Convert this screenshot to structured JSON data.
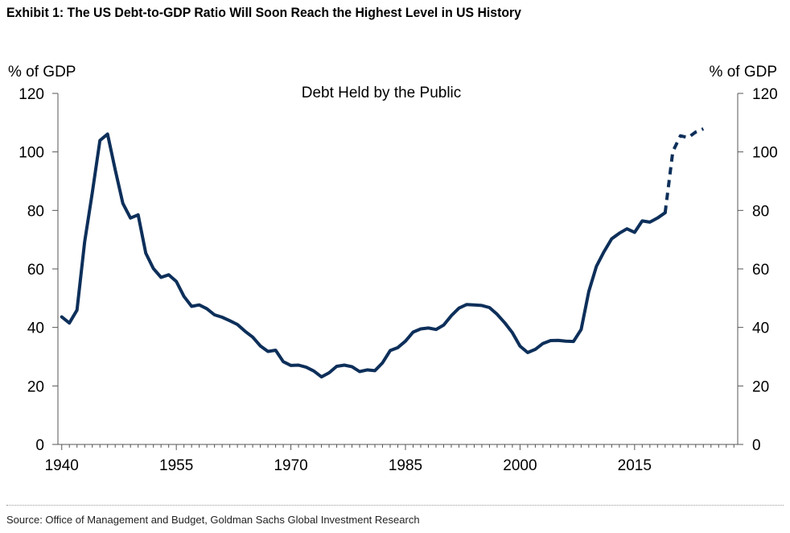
{
  "title": "Exhibit 1: The US Debt-to-GDP Ratio Will Soon Reach the Highest Level in US History",
  "source": "Source: Office of Management and Budget, Goldman Sachs Global Investment Research",
  "chart_data": {
    "type": "line",
    "title": "Debt Held by the Public",
    "ylabel_left": "% of GDP",
    "ylabel_right": "% of GDP",
    "xlim": [
      1939.5,
      2028.5
    ],
    "ylim": [
      0,
      120
    ],
    "x_ticks": [
      1940,
      1955,
      1970,
      1985,
      2000,
      2015
    ],
    "y_ticks": [
      0,
      20,
      40,
      60,
      80,
      100,
      120
    ],
    "grid": false,
    "line_color": "#0d2f5a",
    "series": [
      {
        "style": "solid",
        "x": [
          1940,
          1941,
          1942,
          1943,
          1944,
          1945,
          1946,
          1947,
          1948,
          1949,
          1950,
          1951,
          1952,
          1953,
          1954,
          1955,
          1956,
          1957,
          1958,
          1959,
          1960,
          1961,
          1962,
          1963,
          1964,
          1965,
          1966,
          1967,
          1968,
          1969,
          1970,
          1971,
          1972,
          1973,
          1974,
          1975,
          1976,
          1977,
          1978,
          1979,
          1980,
          1981,
          1982,
          1983,
          1984,
          1985,
          1986,
          1987,
          1988,
          1989,
          1990,
          1991,
          1992,
          1993,
          1994,
          1995,
          1996,
          1997,
          1998,
          1999,
          2000,
          2001,
          2002,
          2003,
          2004,
          2005,
          2006,
          2007,
          2008,
          2009,
          2010,
          2011,
          2012,
          2013,
          2014,
          2015,
          2016,
          2017,
          2018,
          2019
        ],
        "y": [
          43.6,
          41.5,
          45.9,
          69.2,
          86.0,
          103.9,
          106.1,
          93.9,
          82.4,
          77.4,
          78.5,
          65.4,
          60.1,
          57.1,
          58.0,
          55.7,
          50.6,
          47.2,
          47.7,
          46.4,
          44.3,
          43.5,
          42.3,
          41.0,
          38.7,
          36.7,
          33.7,
          31.8,
          32.2,
          28.3,
          27.0,
          27.1,
          26.4,
          25.1,
          23.1,
          24.5,
          26.7,
          27.1,
          26.6,
          24.9,
          25.5,
          25.2,
          27.9,
          32.1,
          33.1,
          35.3,
          38.4,
          39.5,
          39.8,
          39.3,
          40.8,
          44.0,
          46.6,
          47.8,
          47.7,
          47.5,
          46.8,
          44.5,
          41.6,
          38.2,
          33.6,
          31.4,
          32.5,
          34.5,
          35.5,
          35.6,
          35.3,
          35.2,
          39.3,
          52.3,
          60.9,
          65.9,
          70.3,
          72.2,
          73.7,
          72.5,
          76.4,
          76.0,
          77.4,
          79.2
        ]
      },
      {
        "style": "dashed",
        "x": [
          2019,
          2020,
          2021,
          2022,
          2023,
          2024
        ],
        "y": [
          79.2,
          100.1,
          105.5,
          104.9,
          106.8,
          107.9
        ]
      }
    ]
  }
}
